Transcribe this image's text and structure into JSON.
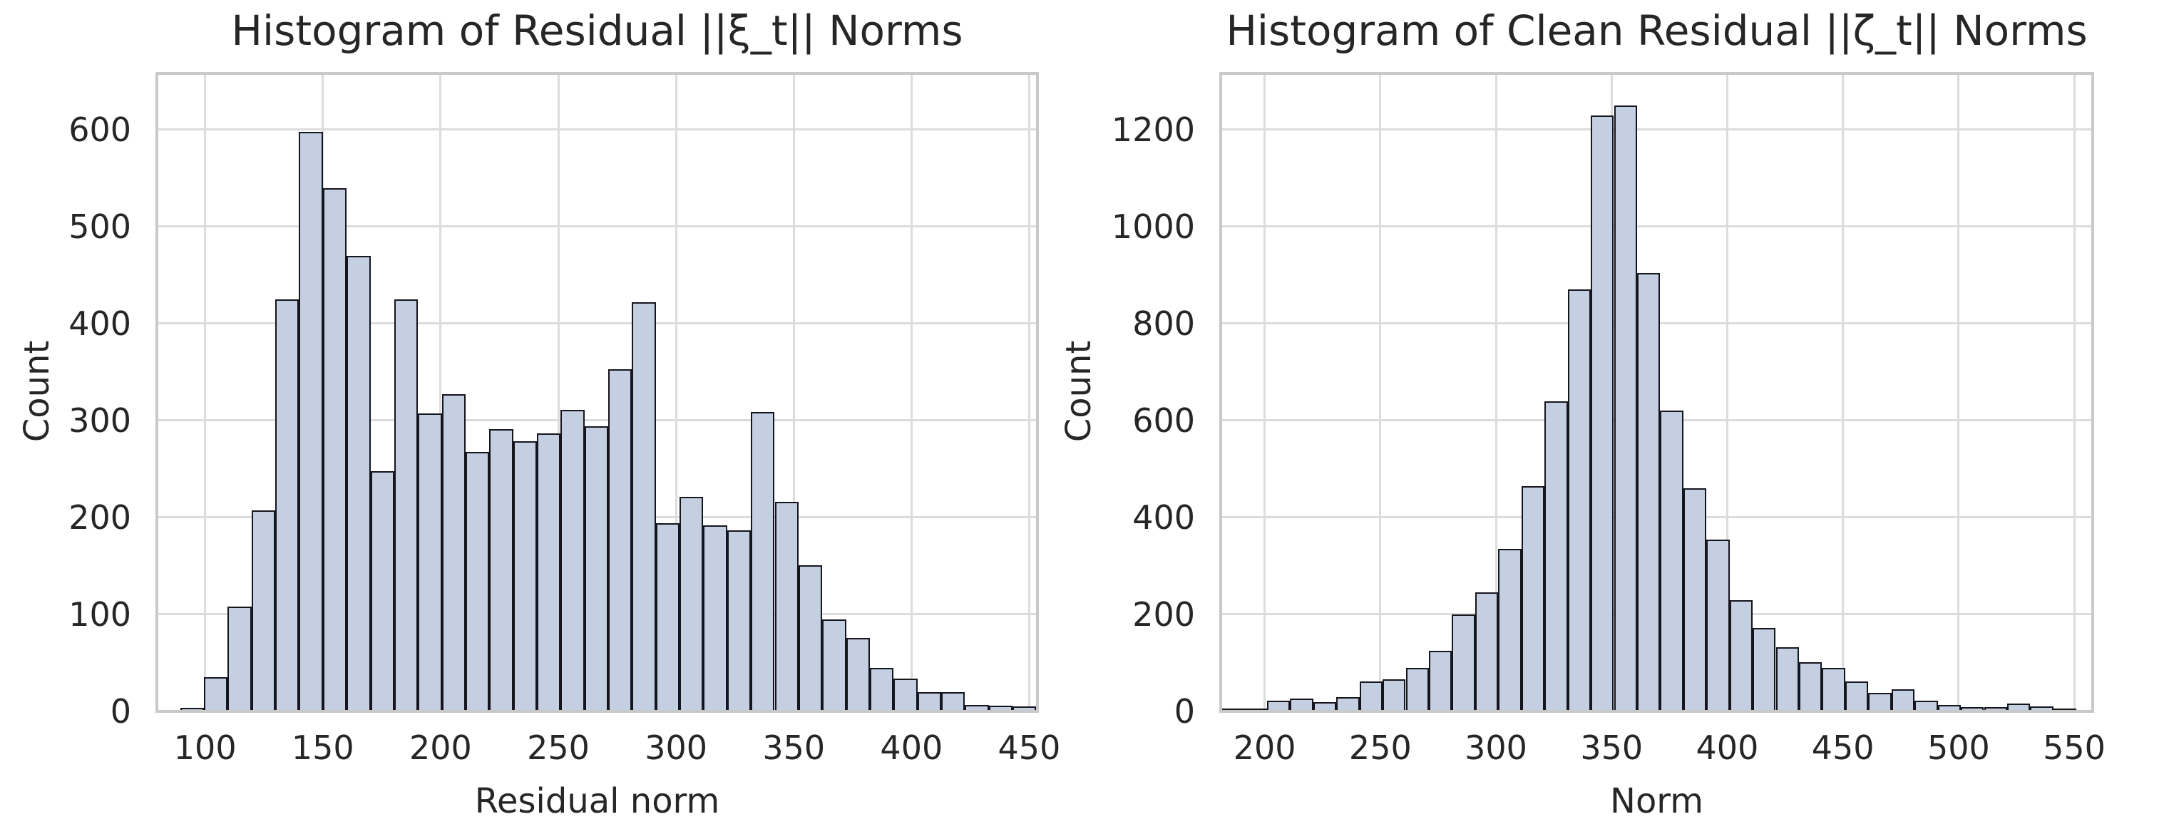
{
  "chart_data": [
    {
      "type": "histogram",
      "title": "Histogram of Residual ||ξ_t|| Norms",
      "xlabel": "Residual norm",
      "ylabel": "Count",
      "x_ticks": [
        100,
        150,
        200,
        250,
        300,
        350,
        400,
        450
      ],
      "y_ticks": [
        0,
        100,
        200,
        300,
        400,
        500,
        600
      ],
      "xlim": [
        79.5,
        453.5
      ],
      "ylim": [
        0,
        658
      ],
      "grid": true,
      "bin_start": 89.4,
      "bin_width": 10.1,
      "counts": [
        4,
        35,
        108,
        207,
        425,
        598,
        540,
        470,
        248,
        425,
        307,
        327,
        268,
        291,
        279,
        287,
        311,
        294,
        353,
        422,
        194,
        221,
        192,
        187,
        309,
        216,
        151,
        95,
        76,
        45,
        34,
        20,
        20,
        7,
        6,
        5
      ]
    },
    {
      "type": "histogram",
      "title": "Histogram of Clean Residual ||ζ_t|| Norms",
      "xlabel": "Norm",
      "ylabel": "Count",
      "x_ticks": [
        200,
        250,
        300,
        350,
        400,
        450,
        500,
        550
      ],
      "y_ticks": [
        0,
        200,
        400,
        600,
        800,
        1000,
        1200
      ],
      "xlim": [
        181,
        558
      ],
      "ylim": [
        0,
        1316
      ],
      "grid": true,
      "bin_start": 181,
      "bin_width": 10.0,
      "counts": [
        4,
        4,
        22,
        26,
        19,
        30,
        62,
        66,
        90,
        125,
        200,
        245,
        335,
        465,
        640,
        870,
        1230,
        1250,
        905,
        620,
        460,
        355,
        230,
        172,
        132,
        102,
        90,
        62,
        38,
        45,
        22,
        13,
        9,
        9,
        16,
        10,
        6
      ]
    }
  ],
  "style": {
    "bar_fill": "#c5cfe2",
    "bar_edge": "#15151d",
    "grid_color": "#dcdcdc",
    "spine_color": "#c9c9c9",
    "text_color": "#262626",
    "background": "#ffffff"
  }
}
